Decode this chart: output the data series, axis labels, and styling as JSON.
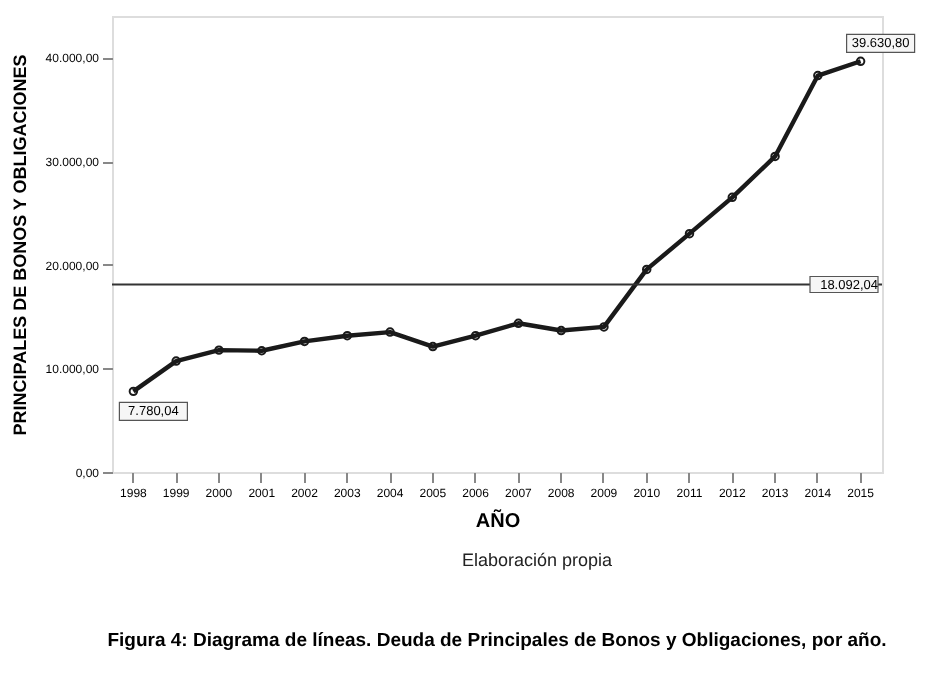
{
  "chart_data": {
    "type": "line",
    "title": "Figura 4: Diagrama de líneas. Deuda de Principales de Bonos y Obligaciones, por año.",
    "xlabel": "AÑO",
    "ylabel": "PRINCIPALES DE BONOS Y OBLIGACIONES",
    "categories": [
      "1998",
      "1999",
      "2000",
      "2001",
      "2002",
      "2003",
      "2004",
      "2005",
      "2006",
      "2007",
      "2008",
      "2009",
      "2010",
      "2011",
      "2012",
      "2013",
      "2014",
      "2015"
    ],
    "series": [
      {
        "color": "#1a1a1a",
        "values": [
          7780.04,
          10700,
          11760,
          11700,
          12600,
          13150,
          13500,
          12100,
          13150,
          14350,
          13650,
          14000,
          19550,
          23000,
          26500,
          30450,
          38250,
          39630.8
        ]
      }
    ],
    "ylim": [
      0,
      44000
    ],
    "yticks": [
      {
        "value": 0,
        "label": "0,00"
      },
      {
        "value": 10000,
        "label": "10.000,00"
      },
      {
        "value": 20000,
        "label": "20.000,00"
      },
      {
        "value": 30000,
        "label": "30.000,00"
      },
      {
        "value": 40000,
        "label": "40.000,00"
      }
    ],
    "ref_lines": [
      {
        "axis": "y",
        "value": 18092.04,
        "label": "18.092,04",
        "color": "#333333"
      }
    ],
    "annotations": [
      {
        "text": "7.780,04",
        "x": "1998",
        "y": 7780.04
      },
      {
        "text": "39.630,80",
        "x": "2015",
        "y": 39630.8
      },
      "Elaboración propia"
    ],
    "marker": "circle",
    "line_style": "solid",
    "grid": false
  }
}
